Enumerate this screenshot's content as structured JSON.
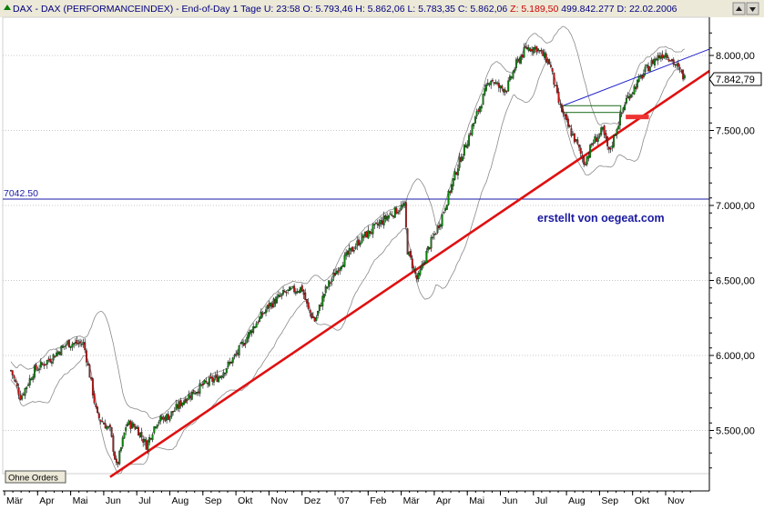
{
  "header": {
    "symbol": "DAX",
    "name": "DAX (PERFORMANCEINDEX)",
    "period": "End-of-Day 1 Tage",
    "fields": [
      {
        "label": "U:",
        "value": "23:58",
        "color": "#000080"
      },
      {
        "label": "O:",
        "value": "5.793,46",
        "color": "#000080"
      },
      {
        "label": "H:",
        "value": "5.862,06",
        "color": "#000080"
      },
      {
        "label": "L:",
        "value": "5.783,35",
        "color": "#000080"
      },
      {
        "label": "C:",
        "value": "5.862,06",
        "color": "#000080"
      },
      {
        "label": "Z:",
        "value": "5.189,50",
        "color": "#cc0000"
      },
      {
        "label": "",
        "value": "499.842.277",
        "color": "#000080"
      },
      {
        "label": "D:",
        "value": "22.02.2006",
        "color": "#000080"
      }
    ]
  },
  "watermark": "erstellt von oegeat.com",
  "status_button": "Ohne Orders",
  "chart_data": {
    "type": "candlestick",
    "y_range": [
      5140,
      8230
    ],
    "y_ticks": [
      {
        "value": 5500,
        "label": "5.500,00"
      },
      {
        "value": 6000,
        "label": "6.000,00"
      },
      {
        "value": 6500,
        "label": "6.500,00"
      },
      {
        "value": 7000,
        "label": "7.000,00"
      },
      {
        "value": 7500,
        "label": "7.500,00"
      },
      {
        "value": 8000,
        "label": "8.000,00"
      }
    ],
    "x_ticks": [
      "Mär",
      "Apr",
      "Mai",
      "Jun",
      "Jul",
      "Aug",
      "Sep",
      "Okt",
      "Nov",
      "Dez",
      "'07",
      "Feb",
      "Mär",
      "Apr",
      "Mai",
      "Jun",
      "Jul",
      "Aug",
      "Sep",
      "Okt",
      "Nov"
    ],
    "last_price": {
      "value": 7842.79,
      "label": "7.842,79"
    },
    "horizontal_line": {
      "value": 7042.5,
      "label": "7042.50",
      "color": "#1a1aa6"
    },
    "trend_line": {
      "from": {
        "month_index": 3.0,
        "value": 5190
      },
      "to": {
        "month_index": 20.35,
        "value": 7780
      },
      "color": "#e01010"
    },
    "upper_trend_line": {
      "from": {
        "month_index": 16.7,
        "value": 7665
      },
      "to": {
        "month_index": 20.4,
        "value": 7980
      },
      "color": "#2222cc"
    },
    "support_box": {
      "from_month": 16.7,
      "to_month": 18.45,
      "low": 7620,
      "high": 7665
    },
    "stop_marker": {
      "from_month": 18.6,
      "to_month": 19.3,
      "value": 7590,
      "color": "#ee3333"
    },
    "anchors": [
      {
        "m": 0.0,
        "v": 5900
      },
      {
        "m": 0.3,
        "v": 5720
      },
      {
        "m": 0.7,
        "v": 5900
      },
      {
        "m": 1.2,
        "v": 5980
      },
      {
        "m": 1.7,
        "v": 6080
      },
      {
        "m": 2.2,
        "v": 6080
      },
      {
        "m": 2.4,
        "v": 5850
      },
      {
        "m": 2.6,
        "v": 5600
      },
      {
        "m": 3.0,
        "v": 5500
      },
      {
        "m": 3.2,
        "v": 5250
      },
      {
        "m": 3.5,
        "v": 5550
      },
      {
        "m": 3.8,
        "v": 5520
      },
      {
        "m": 4.1,
        "v": 5400
      },
      {
        "m": 4.4,
        "v": 5560
      },
      {
        "m": 4.8,
        "v": 5600
      },
      {
        "m": 5.3,
        "v": 5720
      },
      {
        "m": 5.8,
        "v": 5800
      },
      {
        "m": 6.3,
        "v": 5860
      },
      {
        "m": 6.8,
        "v": 6000
      },
      {
        "m": 7.3,
        "v": 6180
      },
      {
        "m": 7.8,
        "v": 6330
      },
      {
        "m": 8.3,
        "v": 6420
      },
      {
        "m": 8.8,
        "v": 6450
      },
      {
        "m": 9.0,
        "v": 6300
      },
      {
        "m": 9.2,
        "v": 6230
      },
      {
        "m": 9.5,
        "v": 6430
      },
      {
        "m": 10.0,
        "v": 6620
      },
      {
        "m": 10.6,
        "v": 6780
      },
      {
        "m": 11.0,
        "v": 6850
      },
      {
        "m": 11.4,
        "v": 6930
      },
      {
        "m": 11.9,
        "v": 7000
      },
      {
        "m": 12.0,
        "v": 6700
      },
      {
        "m": 12.3,
        "v": 6500
      },
      {
        "m": 12.6,
        "v": 6700
      },
      {
        "m": 13.0,
        "v": 6900
      },
      {
        "m": 13.5,
        "v": 7250
      },
      {
        "m": 14.0,
        "v": 7550
      },
      {
        "m": 14.5,
        "v": 7850
      },
      {
        "m": 14.8,
        "v": 7780
      },
      {
        "m": 15.0,
        "v": 7780
      },
      {
        "m": 15.3,
        "v": 7950
      },
      {
        "m": 15.6,
        "v": 8050
      },
      {
        "m": 15.9,
        "v": 8050
      },
      {
        "m": 16.3,
        "v": 7950
      },
      {
        "m": 16.55,
        "v": 7700
      },
      {
        "m": 16.8,
        "v": 7550
      },
      {
        "m": 17.1,
        "v": 7420
      },
      {
        "m": 17.35,
        "v": 7280
      },
      {
        "m": 17.6,
        "v": 7420
      },
      {
        "m": 17.9,
        "v": 7500
      },
      {
        "m": 18.1,
        "v": 7350
      },
      {
        "m": 18.3,
        "v": 7500
      },
      {
        "m": 18.6,
        "v": 7700
      },
      {
        "m": 18.9,
        "v": 7800
      },
      {
        "m": 19.2,
        "v": 7900
      },
      {
        "m": 19.5,
        "v": 7980
      },
      {
        "m": 19.8,
        "v": 8020
      },
      {
        "m": 20.05,
        "v": 7950
      },
      {
        "m": 20.4,
        "v": 7843
      }
    ]
  }
}
